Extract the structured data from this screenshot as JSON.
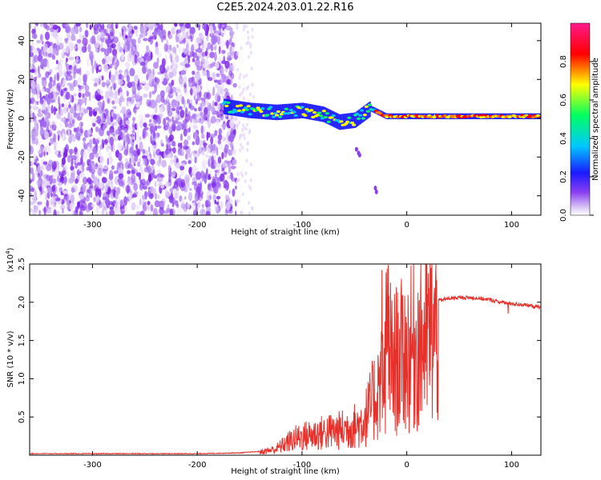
{
  "title": "C2E5.2024.203.01.22.R16",
  "chart_data": [
    {
      "type": "heatmap",
      "title": "C2E5.2024.203.01.22.R16",
      "xlabel": "Height of straight line (km)",
      "ylabel": "Frequency (Hz)",
      "xlim": [
        -360,
        128
      ],
      "ylim": [
        -50,
        49
      ],
      "xticks": [
        -300,
        -200,
        -100,
        0,
        100
      ],
      "yticks": [
        -40,
        -20,
        0,
        20,
        40
      ],
      "colorbar": {
        "label": "Normalized spectral amplitude",
        "range": [
          0,
          1
        ],
        "ticks": [
          "0.0",
          "0.2",
          "0.4",
          "0.6",
          "0.8"
        ],
        "colors": [
          "#ffffff",
          "#d9c8f5",
          "#8a3ef0",
          "#1a1aff",
          "#00c8ff",
          "#00ff60",
          "#ffff00",
          "#ff0000",
          "#ff1a8c"
        ]
      },
      "features": {
        "noise_region_x": [
          -360,
          -163
        ],
        "signal_track": [
          {
            "x": -175,
            "y": 6
          },
          {
            "x": -150,
            "y": 4
          },
          {
            "x": -125,
            "y": 3
          },
          {
            "x": -100,
            "y": 4
          },
          {
            "x": -80,
            "y": 2
          },
          {
            "x": -65,
            "y": -2
          },
          {
            "x": -50,
            "y": -1
          },
          {
            "x": -35,
            "y": 5
          },
          {
            "x": -20,
            "y": 1
          },
          {
            "x": 0,
            "y": 1
          },
          {
            "x": 50,
            "y": 1
          },
          {
            "x": 100,
            "y": 1
          },
          {
            "x": 128,
            "y": 1
          }
        ]
      }
    },
    {
      "type": "line",
      "xlabel": "Height of straight line (km)",
      "ylabel": "SNR (10 * v/v)",
      "y_scale_label": "(x10^4)",
      "xlim": [
        -360,
        128
      ],
      "ylim": [
        0,
        2.5
      ],
      "xticks": [
        -300,
        -200,
        -100,
        0,
        100
      ],
      "yticks": [
        "0.5",
        "1.0",
        "1.5",
        "2.0",
        "2.5"
      ],
      "series_color": "#e8302a",
      "series": [
        {
          "x": [
            -360,
            -300,
            -250,
            -200,
            -160,
            -140,
            -125,
            -115,
            -105,
            -95,
            -85,
            -75,
            -65,
            -55,
            -45,
            -38,
            -32,
            -27,
            -22,
            -18,
            -14,
            -10,
            -5,
            0,
            10,
            20,
            30,
            40,
            50,
            60,
            70,
            80,
            90,
            100,
            110,
            120,
            128
          ],
          "y": [
            0.02,
            0.02,
            0.02,
            0.02,
            0.03,
            0.05,
            0.1,
            0.2,
            0.28,
            0.32,
            0.35,
            0.38,
            0.4,
            0.45,
            0.5,
            0.65,
            0.9,
            1.1,
            1.3,
            1.5,
            1.45,
            1.55,
            1.6,
            1.65,
            1.8,
            1.95,
            2.02,
            2.05,
            2.06,
            2.06,
            2.05,
            2.03,
            2.0,
            1.98,
            1.97,
            1.95,
            1.93
          ]
        }
      ]
    }
  ]
}
